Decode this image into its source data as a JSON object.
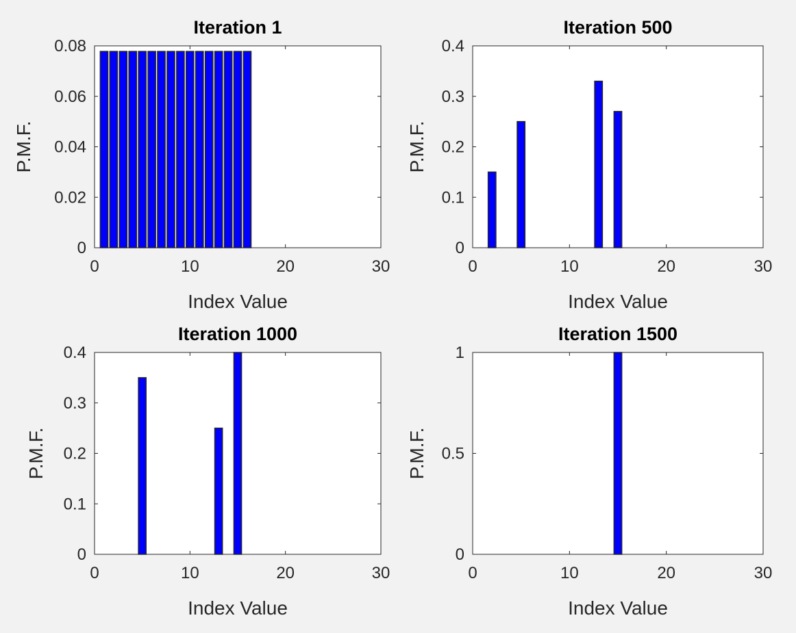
{
  "chart_data": [
    {
      "type": "bar",
      "title": "Iteration 1",
      "xlabel": "Index Value",
      "ylabel": "P.M.F.",
      "xlim": [
        0,
        30
      ],
      "ylim": [
        0,
        0.08
      ],
      "xticks": [
        0,
        10,
        20,
        30
      ],
      "xtick_labels": [
        "0",
        "10",
        "20",
        "30"
      ],
      "yticks": [
        0,
        0.02,
        0.04,
        0.06,
        0.08
      ],
      "ytick_labels": [
        "0",
        "0.02",
        "0.04",
        "0.06",
        "0.08"
      ],
      "x": [
        1,
        2,
        3,
        4,
        5,
        6,
        7,
        8,
        9,
        10,
        11,
        12,
        13,
        14,
        15,
        16
      ],
      "values": [
        0.0778,
        0.0778,
        0.0778,
        0.0778,
        0.0778,
        0.0778,
        0.0778,
        0.0778,
        0.0778,
        0.0778,
        0.0778,
        0.0778,
        0.0778,
        0.0778,
        0.0778,
        0.0778
      ],
      "bar_width": 0.8,
      "bar_color": "#0000ff",
      "grid": false
    },
    {
      "type": "bar",
      "title": "Iteration 500",
      "xlabel": "Index Value",
      "ylabel": "P.M.F.",
      "xlim": [
        0,
        30
      ],
      "ylim": [
        0,
        0.4
      ],
      "xticks": [
        0,
        10,
        20,
        30
      ],
      "xtick_labels": [
        "0",
        "10",
        "20",
        "30"
      ],
      "yticks": [
        0,
        0.1,
        0.2,
        0.3,
        0.4
      ],
      "ytick_labels": [
        "0",
        "0.1",
        "0.2",
        "0.3",
        "0.4"
      ],
      "x": [
        2,
        5,
        13,
        15
      ],
      "values": [
        0.15,
        0.25,
        0.33,
        0.27
      ],
      "bar_width": 0.8,
      "bar_color": "#0000ff",
      "grid": false
    },
    {
      "type": "bar",
      "title": "Iteration 1000",
      "xlabel": "Index Value",
      "ylabel": "P.M.F.",
      "xlim": [
        0,
        30
      ],
      "ylim": [
        0,
        0.4
      ],
      "xticks": [
        0,
        10,
        20,
        30
      ],
      "xtick_labels": [
        "0",
        "10",
        "20",
        "30"
      ],
      "yticks": [
        0,
        0.1,
        0.2,
        0.3,
        0.4
      ],
      "ytick_labels": [
        "0",
        "0.1",
        "0.2",
        "0.3",
        "0.4"
      ],
      "x": [
        5,
        13,
        15
      ],
      "values": [
        0.35,
        0.25,
        0.4
      ],
      "bar_width": 0.8,
      "bar_color": "#0000ff",
      "grid": false
    },
    {
      "type": "bar",
      "title": "Iteration 1500",
      "xlabel": "Index Value",
      "ylabel": "P.M.F.",
      "xlim": [
        0,
        30
      ],
      "ylim": [
        0,
        1
      ],
      "xticks": [
        0,
        10,
        20,
        30
      ],
      "xtick_labels": [
        "0",
        "10",
        "20",
        "30"
      ],
      "yticks": [
        0,
        0.5,
        1
      ],
      "ytick_labels": [
        "0",
        "0.5",
        "1"
      ],
      "x": [
        15
      ],
      "values": [
        1
      ],
      "bar_width": 0.8,
      "bar_color": "#0000ff",
      "grid": false
    }
  ]
}
